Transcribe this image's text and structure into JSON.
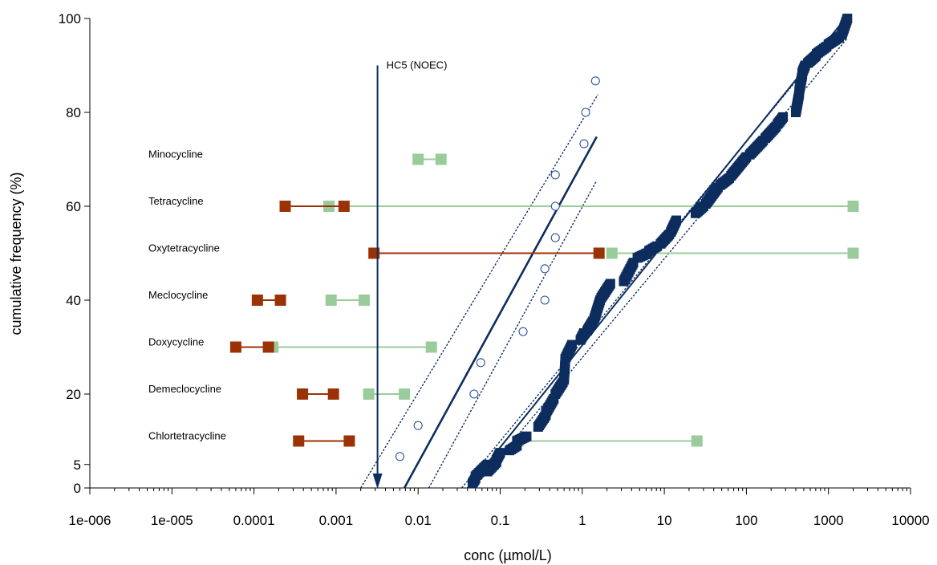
{
  "chart_data": {
    "type": "scatter",
    "title": "",
    "xlabel": "conc (µmol/L)",
    "ylabel": "cumulative frequency (%)",
    "x_scale": "log",
    "xlim": [
      1e-06,
      10000
    ],
    "ylim": [
      0,
      100
    ],
    "x_ticks": [
      {
        "value": 1e-06,
        "label": "1e-006"
      },
      {
        "value": 1e-05,
        "label": "1e-005"
      },
      {
        "value": 0.0001,
        "label": "0.0001"
      },
      {
        "value": 0.001,
        "label": "0.001"
      },
      {
        "value": 0.01,
        "label": "0.01"
      },
      {
        "value": 0.1,
        "label": "0.1"
      },
      {
        "value": 1,
        "label": "1"
      },
      {
        "value": 10,
        "label": "10"
      },
      {
        "value": 100,
        "label": "100"
      },
      {
        "value": 1000,
        "label": "1000"
      },
      {
        "value": 10000,
        "label": "10000"
      }
    ],
    "y_ticks": [
      {
        "value": 0,
        "label": "0"
      },
      {
        "value": 5,
        "label": "5"
      },
      {
        "value": 20,
        "label": "20"
      },
      {
        "value": 40,
        "label": "40"
      },
      {
        "value": 60,
        "label": "60"
      },
      {
        "value": 80,
        "label": "80"
      },
      {
        "value": 100,
        "label": "100"
      }
    ],
    "grid": false,
    "colors": {
      "axis": "#000000",
      "navy": "#0c2d5e",
      "rust": "#9b3206",
      "green": "#99cc9a",
      "circle": "#2f5597"
    },
    "hc5_annotation": {
      "label": "HC5 (NOEC)",
      "x": 0.0032,
      "y_top": 90,
      "y_bottom": 0
    },
    "ssd_circles": [
      {
        "x": 0.006,
        "y": 6.7
      },
      {
        "x": 0.01,
        "y": 13.3
      },
      {
        "x": 0.048,
        "y": 20
      },
      {
        "x": 0.058,
        "y": 26.7
      },
      {
        "x": 0.19,
        "y": 33.3
      },
      {
        "x": 0.35,
        "y": 40
      },
      {
        "x": 0.35,
        "y": 46.7
      },
      {
        "x": 0.47,
        "y": 53.3
      },
      {
        "x": 0.47,
        "y": 60
      },
      {
        "x": 0.47,
        "y": 66.7
      },
      {
        "x": 1.05,
        "y": 73.3
      },
      {
        "x": 1.1,
        "y": 80
      },
      {
        "x": 1.45,
        "y": 86.7
      }
    ],
    "ssd_circles_fit": {
      "points": [
        {
          "x": 0.0068,
          "y": 0
        },
        {
          "x": 1.5,
          "y": 74.8
        }
      ]
    },
    "ssd_circles_ci": [
      {
        "points": [
          {
            "x": 0.002,
            "y": 0
          },
          {
            "x": 1.55,
            "y": 83.8
          }
        ]
      },
      {
        "points": [
          {
            "x": 0.0135,
            "y": 0
          },
          {
            "x": 1.5,
            "y": 65.5
          }
        ]
      }
    ],
    "ssd_squares_fit": {
      "points": [
        {
          "x": 0.04,
          "y": 0
        },
        {
          "x": 1600,
          "y": 100
        }
      ]
    },
    "ssd_squares_ci": [
      {
        "points": [
          {
            "x": 0.034,
            "y": 0
          },
          {
            "x": 1700,
            "y": 100
          }
        ]
      },
      {
        "points": [
          {
            "x": 0.048,
            "y": 0
          },
          {
            "x": 1700,
            "y": 95.8
          }
        ]
      }
    ],
    "ssd_squares_segments": [
      {
        "x_start": 0.046,
        "x_end": 0.05,
        "y_start": 1,
        "y_end": 2
      },
      {
        "x_start": 0.05,
        "x_end": 0.07,
        "y_start": 2.5,
        "y_end": 5
      },
      {
        "x_start": 0.07,
        "x_end": 0.09,
        "y_start": 3.5,
        "y_end": 5.5
      },
      {
        "x_start": 0.09,
        "x_end": 0.1,
        "y_start": 6,
        "y_end": 7.5
      },
      {
        "x_start": 0.13,
        "x_end": 0.16,
        "y_start": 8,
        "y_end": 9
      },
      {
        "x_start": 0.16,
        "x_end": 0.21,
        "y_start": 10,
        "y_end": 11
      },
      {
        "x_start": 0.29,
        "x_end": 0.36,
        "y_start": 13,
        "y_end": 15.5
      },
      {
        "x_start": 0.36,
        "x_end": 0.45,
        "y_start": 16,
        "y_end": 19
      },
      {
        "x_start": 0.47,
        "x_end": 0.58,
        "y_start": 20,
        "y_end": 22.5
      },
      {
        "x_start": 0.6,
        "x_end": 0.62,
        "y_start": 23,
        "y_end": 27
      },
      {
        "x_start": 0.62,
        "x_end": 0.75,
        "y_start": 27.5,
        "y_end": 30.5
      },
      {
        "x_start": 0.95,
        "x_end": 1.05,
        "y_start": 31.5,
        "y_end": 33
      },
      {
        "x_start": 1.15,
        "x_end": 1.35,
        "y_start": 33.5,
        "y_end": 35.5
      },
      {
        "x_start": 1.4,
        "x_end": 1.65,
        "y_start": 36,
        "y_end": 40
      },
      {
        "x_start": 1.7,
        "x_end": 2.2,
        "y_start": 40.5,
        "y_end": 43.5
      },
      {
        "x_start": 3.2,
        "x_end": 4.2,
        "y_start": 44,
        "y_end": 48
      },
      {
        "x_start": 4.7,
        "x_end": 6.2,
        "y_start": 49,
        "y_end": 50
      },
      {
        "x_start": 6.5,
        "x_end": 8.2,
        "y_start": 50.5,
        "y_end": 51.5
      },
      {
        "x_start": 9,
        "x_end": 11.5,
        "y_start": 52,
        "y_end": 54
      },
      {
        "x_start": 12,
        "x_end": 14,
        "y_start": 54.5,
        "y_end": 57
      },
      {
        "x_start": 24,
        "x_end": 30,
        "y_start": 58.5,
        "y_end": 60
      },
      {
        "x_start": 32,
        "x_end": 45,
        "y_start": 60.5,
        "y_end": 64
      },
      {
        "x_start": 48,
        "x_end": 62,
        "y_start": 64.5,
        "y_end": 66
      },
      {
        "x_start": 65,
        "x_end": 100,
        "y_start": 66.5,
        "y_end": 70.5
      },
      {
        "x_start": 110,
        "x_end": 160,
        "y_start": 71,
        "y_end": 74
      },
      {
        "x_start": 170,
        "x_end": 230,
        "y_start": 74.5,
        "y_end": 77
      },
      {
        "x_start": 240,
        "x_end": 280,
        "y_start": 77.5,
        "y_end": 79
      },
      {
        "x_start": 400,
        "x_end": 440,
        "y_start": 80,
        "y_end": 84
      },
      {
        "x_start": 440,
        "x_end": 480,
        "y_start": 84.5,
        "y_end": 88
      },
      {
        "x_start": 480,
        "x_end": 520,
        "y_start": 88.5,
        "y_end": 90
      },
      {
        "x_start": 560,
        "x_end": 700,
        "y_start": 90.5,
        "y_end": 92
      },
      {
        "x_start": 720,
        "x_end": 950,
        "y_start": 92.5,
        "y_end": 94
      },
      {
        "x_start": 1000,
        "x_end": 1350,
        "y_start": 94.5,
        "y_end": 96
      },
      {
        "x_start": 1450,
        "x_end": 1700,
        "y_start": 96.5,
        "y_end": 100
      }
    ],
    "compounds": [
      {
        "name": "Minocycline",
        "y": 70,
        "red": null,
        "green": [
          0.01,
          0.019
        ]
      },
      {
        "name": "Tetracycline",
        "y": 60,
        "red": [
          0.00024,
          0.00125
        ],
        "green": [
          0.00082,
          2000
        ]
      },
      {
        "name": "Oxytetracycline",
        "y": 50,
        "red": [
          0.0029,
          1.6
        ],
        "green": [
          2.3,
          2000
        ]
      },
      {
        "name": "Meclocycline",
        "y": 40,
        "red": [
          0.00011,
          0.00021
        ],
        "green": [
          0.00087,
          0.0022
        ]
      },
      {
        "name": "Doxycycline",
        "y": 30,
        "red": [
          6e-05,
          0.00015
        ],
        "green": [
          0.00017,
          0.0145
        ]
      },
      {
        "name": "Demeclocycline",
        "y": 20,
        "red": [
          0.00039,
          0.00093
        ],
        "green": [
          0.0025,
          0.0068
        ]
      },
      {
        "name": "Chlortetracycline",
        "y": 10,
        "red": [
          0.00035,
          0.00145
        ],
        "green": [
          0.165,
          25
        ]
      }
    ]
  }
}
